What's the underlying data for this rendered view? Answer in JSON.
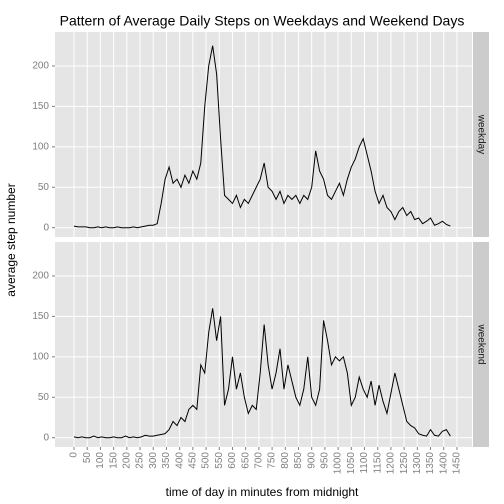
{
  "chart_data": {
    "type": "line",
    "title": "Pattern of Average Daily Steps on Weekdays and Weekend Days",
    "xlabel": "time of day in minutes from midnight",
    "ylabel": "average step number",
    "x": [
      0,
      15,
      30,
      45,
      60,
      75,
      90,
      105,
      120,
      135,
      150,
      165,
      180,
      195,
      210,
      225,
      240,
      255,
      270,
      285,
      300,
      315,
      330,
      345,
      360,
      375,
      390,
      405,
      420,
      435,
      450,
      465,
      480,
      495,
      510,
      525,
      540,
      555,
      570,
      585,
      600,
      615,
      630,
      645,
      660,
      675,
      690,
      705,
      720,
      735,
      750,
      765,
      780,
      795,
      810,
      825,
      840,
      855,
      870,
      885,
      900,
      915,
      930,
      945,
      960,
      975,
      990,
      1005,
      1020,
      1035,
      1050,
      1065,
      1080,
      1095,
      1110,
      1125,
      1140,
      1155,
      1170,
      1185,
      1200,
      1215,
      1230,
      1245,
      1260,
      1275,
      1290,
      1305,
      1320,
      1335,
      1350,
      1365,
      1380,
      1395,
      1410,
      1425
    ],
    "series": [
      {
        "name": "weekday",
        "color": "#000000",
        "values": [
          2,
          1,
          1,
          1,
          0,
          0,
          1,
          0,
          1,
          0,
          0,
          1,
          0,
          0,
          0,
          1,
          0,
          1,
          2,
          3,
          3,
          5,
          30,
          60,
          75,
          55,
          60,
          50,
          65,
          55,
          70,
          60,
          80,
          150,
          200,
          225,
          190,
          110,
          40,
          35,
          30,
          40,
          25,
          35,
          30,
          40,
          50,
          60,
          80,
          50,
          45,
          35,
          45,
          30,
          40,
          35,
          40,
          30,
          40,
          35,
          50,
          95,
          70,
          60,
          40,
          35,
          45,
          55,
          40,
          60,
          75,
          85,
          100,
          110,
          90,
          70,
          45,
          30,
          40,
          25,
          20,
          10,
          20,
          25,
          15,
          20,
          10,
          12,
          5,
          8,
          12,
          3,
          5,
          8,
          4,
          2
        ]
      },
      {
        "name": "weekend",
        "color": "#000000",
        "values": [
          1,
          0,
          1,
          0,
          0,
          2,
          0,
          1,
          0,
          0,
          1,
          0,
          0,
          2,
          0,
          1,
          0,
          1,
          3,
          2,
          2,
          3,
          4,
          5,
          10,
          20,
          15,
          25,
          20,
          35,
          40,
          35,
          90,
          80,
          130,
          160,
          120,
          150,
          40,
          60,
          100,
          60,
          80,
          50,
          30,
          40,
          35,
          80,
          140,
          90,
          60,
          80,
          110,
          60,
          90,
          70,
          50,
          40,
          60,
          100,
          50,
          40,
          60,
          145,
          120,
          90,
          100,
          95,
          100,
          80,
          40,
          50,
          75,
          60,
          50,
          70,
          40,
          65,
          45,
          30,
          55,
          80,
          60,
          40,
          20,
          15,
          12,
          5,
          3,
          2,
          10,
          3,
          2,
          8,
          10,
          2
        ]
      }
    ],
    "xlim": [
      -72,
      1507
    ],
    "xticks": [
      0,
      50,
      100,
      150,
      200,
      250,
      300,
      350,
      400,
      450,
      500,
      550,
      600,
      650,
      700,
      750,
      800,
      850,
      900,
      950,
      1000,
      1050,
      1100,
      1150,
      1200,
      1250,
      1300,
      1350,
      1400,
      1450
    ],
    "ylim": [
      -11.5,
      242
    ],
    "yticks": [
      0,
      50,
      100,
      150,
      200
    ],
    "grid": true,
    "panel_color": "#e5e5e5",
    "grid_color": "#ffffff",
    "strip_color": "#cccccc"
  }
}
